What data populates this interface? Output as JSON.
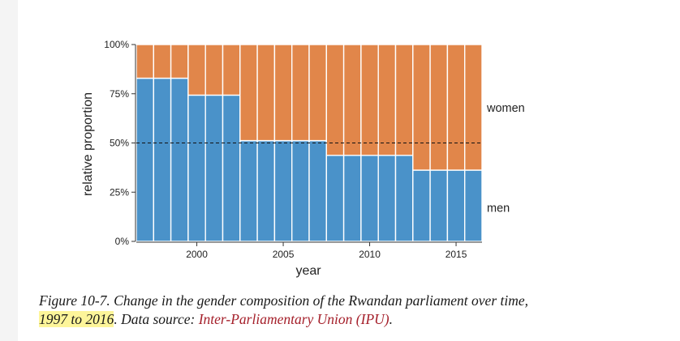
{
  "chart_data": {
    "type": "bar",
    "stacked": true,
    "categories": [
      1997,
      1998,
      1999,
      2000,
      2001,
      2002,
      2003,
      2004,
      2005,
      2006,
      2007,
      2008,
      2009,
      2010,
      2011,
      2012,
      2013,
      2014,
      2015,
      2016
    ],
    "series": [
      {
        "name": "men",
        "color": "#4a92c9",
        "values": [
          0.829,
          0.829,
          0.829,
          0.743,
          0.743,
          0.743,
          0.512,
          0.512,
          0.512,
          0.512,
          0.512,
          0.437,
          0.437,
          0.437,
          0.437,
          0.437,
          0.362,
          0.362,
          0.362,
          0.362
        ]
      },
      {
        "name": "women",
        "color": "#e1864a",
        "values": [
          0.171,
          0.171,
          0.171,
          0.257,
          0.257,
          0.257,
          0.488,
          0.488,
          0.488,
          0.488,
          0.488,
          0.563,
          0.563,
          0.563,
          0.563,
          0.563,
          0.638,
          0.638,
          0.638,
          0.638
        ]
      }
    ],
    "xlabel": "year",
    "ylabel": "relative proportion",
    "ylim": [
      0,
      1
    ],
    "xticks": [
      2000,
      2005,
      2010,
      2015
    ],
    "yticks": [
      0,
      0.25,
      0.5,
      0.75,
      1
    ],
    "ytick_labels": [
      "0%",
      "25%",
      "50%",
      "75%",
      "100%"
    ],
    "reference_line": 0.5,
    "legend_placement": "direct labels at right"
  },
  "caption": {
    "part1": "Figure 10-7. Change in the gender composition of the Rwandan parliament over time,",
    "highlight": "1997 to 2016",
    "part2": ". Data source: ",
    "source": "Inter-Parliamentary Union (IPU)",
    "end": "."
  }
}
